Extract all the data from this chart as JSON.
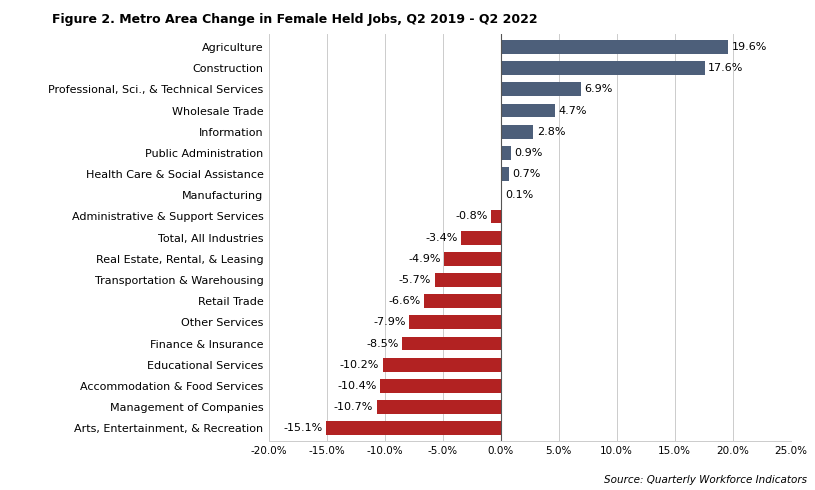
{
  "title": "Figure 2. Metro Area Change in Female Held Jobs, Q2 2019 - Q2 2022",
  "source": "Source: Quarterly Workforce Indicators",
  "categories": [
    "Agriculture",
    "Construction",
    "Professional, Sci., & Technical Services",
    "Wholesale Trade",
    "Information",
    "Public Administration",
    "Health Care & Social Assistance",
    "Manufacturing",
    "Administrative & Support Services",
    "Total, All Industries",
    "Real Estate, Rental, & Leasing",
    "Transportation & Warehousing",
    "Retail Trade",
    "Other Services",
    "Finance & Insurance",
    "Educational Services",
    "Accommodation & Food Services",
    "Management of Companies",
    "Arts, Entertainment, & Recreation"
  ],
  "values": [
    19.6,
    17.6,
    6.9,
    4.7,
    2.8,
    0.9,
    0.7,
    0.1,
    -0.8,
    -3.4,
    -4.9,
    -5.7,
    -6.6,
    -7.9,
    -8.5,
    -10.2,
    -10.4,
    -10.7,
    -15.1
  ],
  "positive_color": "#4D5F7A",
  "negative_color": "#B22222",
  "xlim": [
    -20.0,
    25.0
  ],
  "xticks": [
    -20.0,
    -15.0,
    -10.0,
    -5.0,
    0.0,
    5.0,
    10.0,
    15.0,
    20.0,
    25.0
  ],
  "xtick_labels": [
    "-20.0%",
    "-15.0%",
    "-10.0%",
    "-5.0%",
    "0.0%",
    "5.0%",
    "10.0%",
    "15.0%",
    "20.0%",
    "25.0%"
  ],
  "background_color": "#FFFFFF",
  "title_fontsize": 9.0,
  "label_fontsize": 8.0,
  "tick_fontsize": 7.5,
  "source_fontsize": 7.5,
  "bar_height": 0.65
}
